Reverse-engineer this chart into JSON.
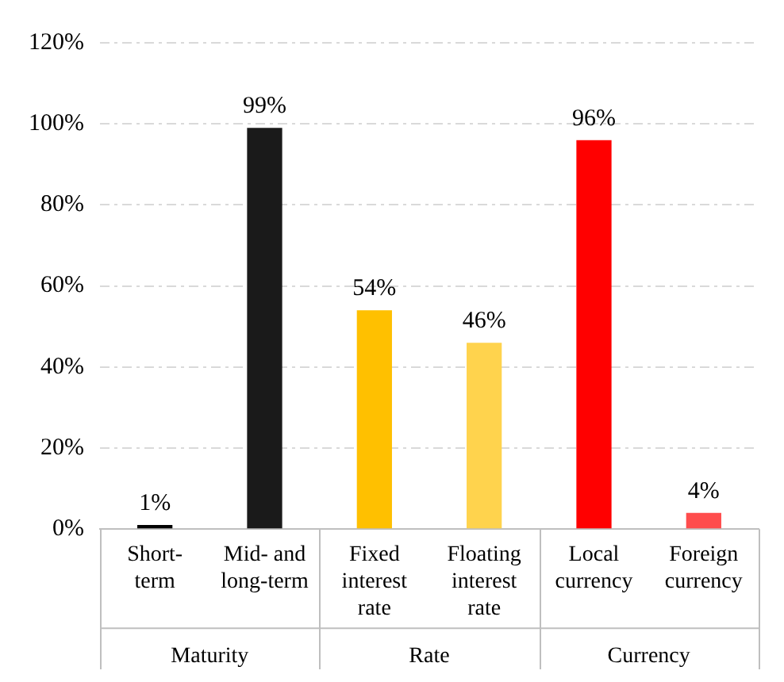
{
  "chart_data": {
    "type": "bar",
    "categories": [
      "Short-term",
      "Mid- and long-term",
      "Fixed interest rate",
      "Floating interest rate",
      "Local currency",
      "Foreign currency"
    ],
    "values": [
      1,
      99,
      54,
      46,
      96,
      4
    ],
    "colors": [
      "#000000",
      "#1a1a1a",
      "#ffc000",
      "#ffd34d",
      "#ff0000",
      "#ff4d4d"
    ],
    "value_labels": [
      "1%",
      "99%",
      "54%",
      "46%",
      "96%",
      "4%"
    ],
    "ylim": [
      0,
      120
    ],
    "yticks": [
      {
        "value": 0,
        "label": "0%"
      },
      {
        "value": 20,
        "label": "20%"
      },
      {
        "value": 40,
        "label": "40%"
      },
      {
        "value": 60,
        "label": "60%"
      },
      {
        "value": 80,
        "label": "80%"
      },
      {
        "value": 100,
        "label": "100%"
      },
      {
        "value": 120,
        "label": "120%"
      }
    ],
    "grid": "y",
    "annotations": [
      "Maturity",
      "Rate",
      "Currency"
    ]
  }
}
